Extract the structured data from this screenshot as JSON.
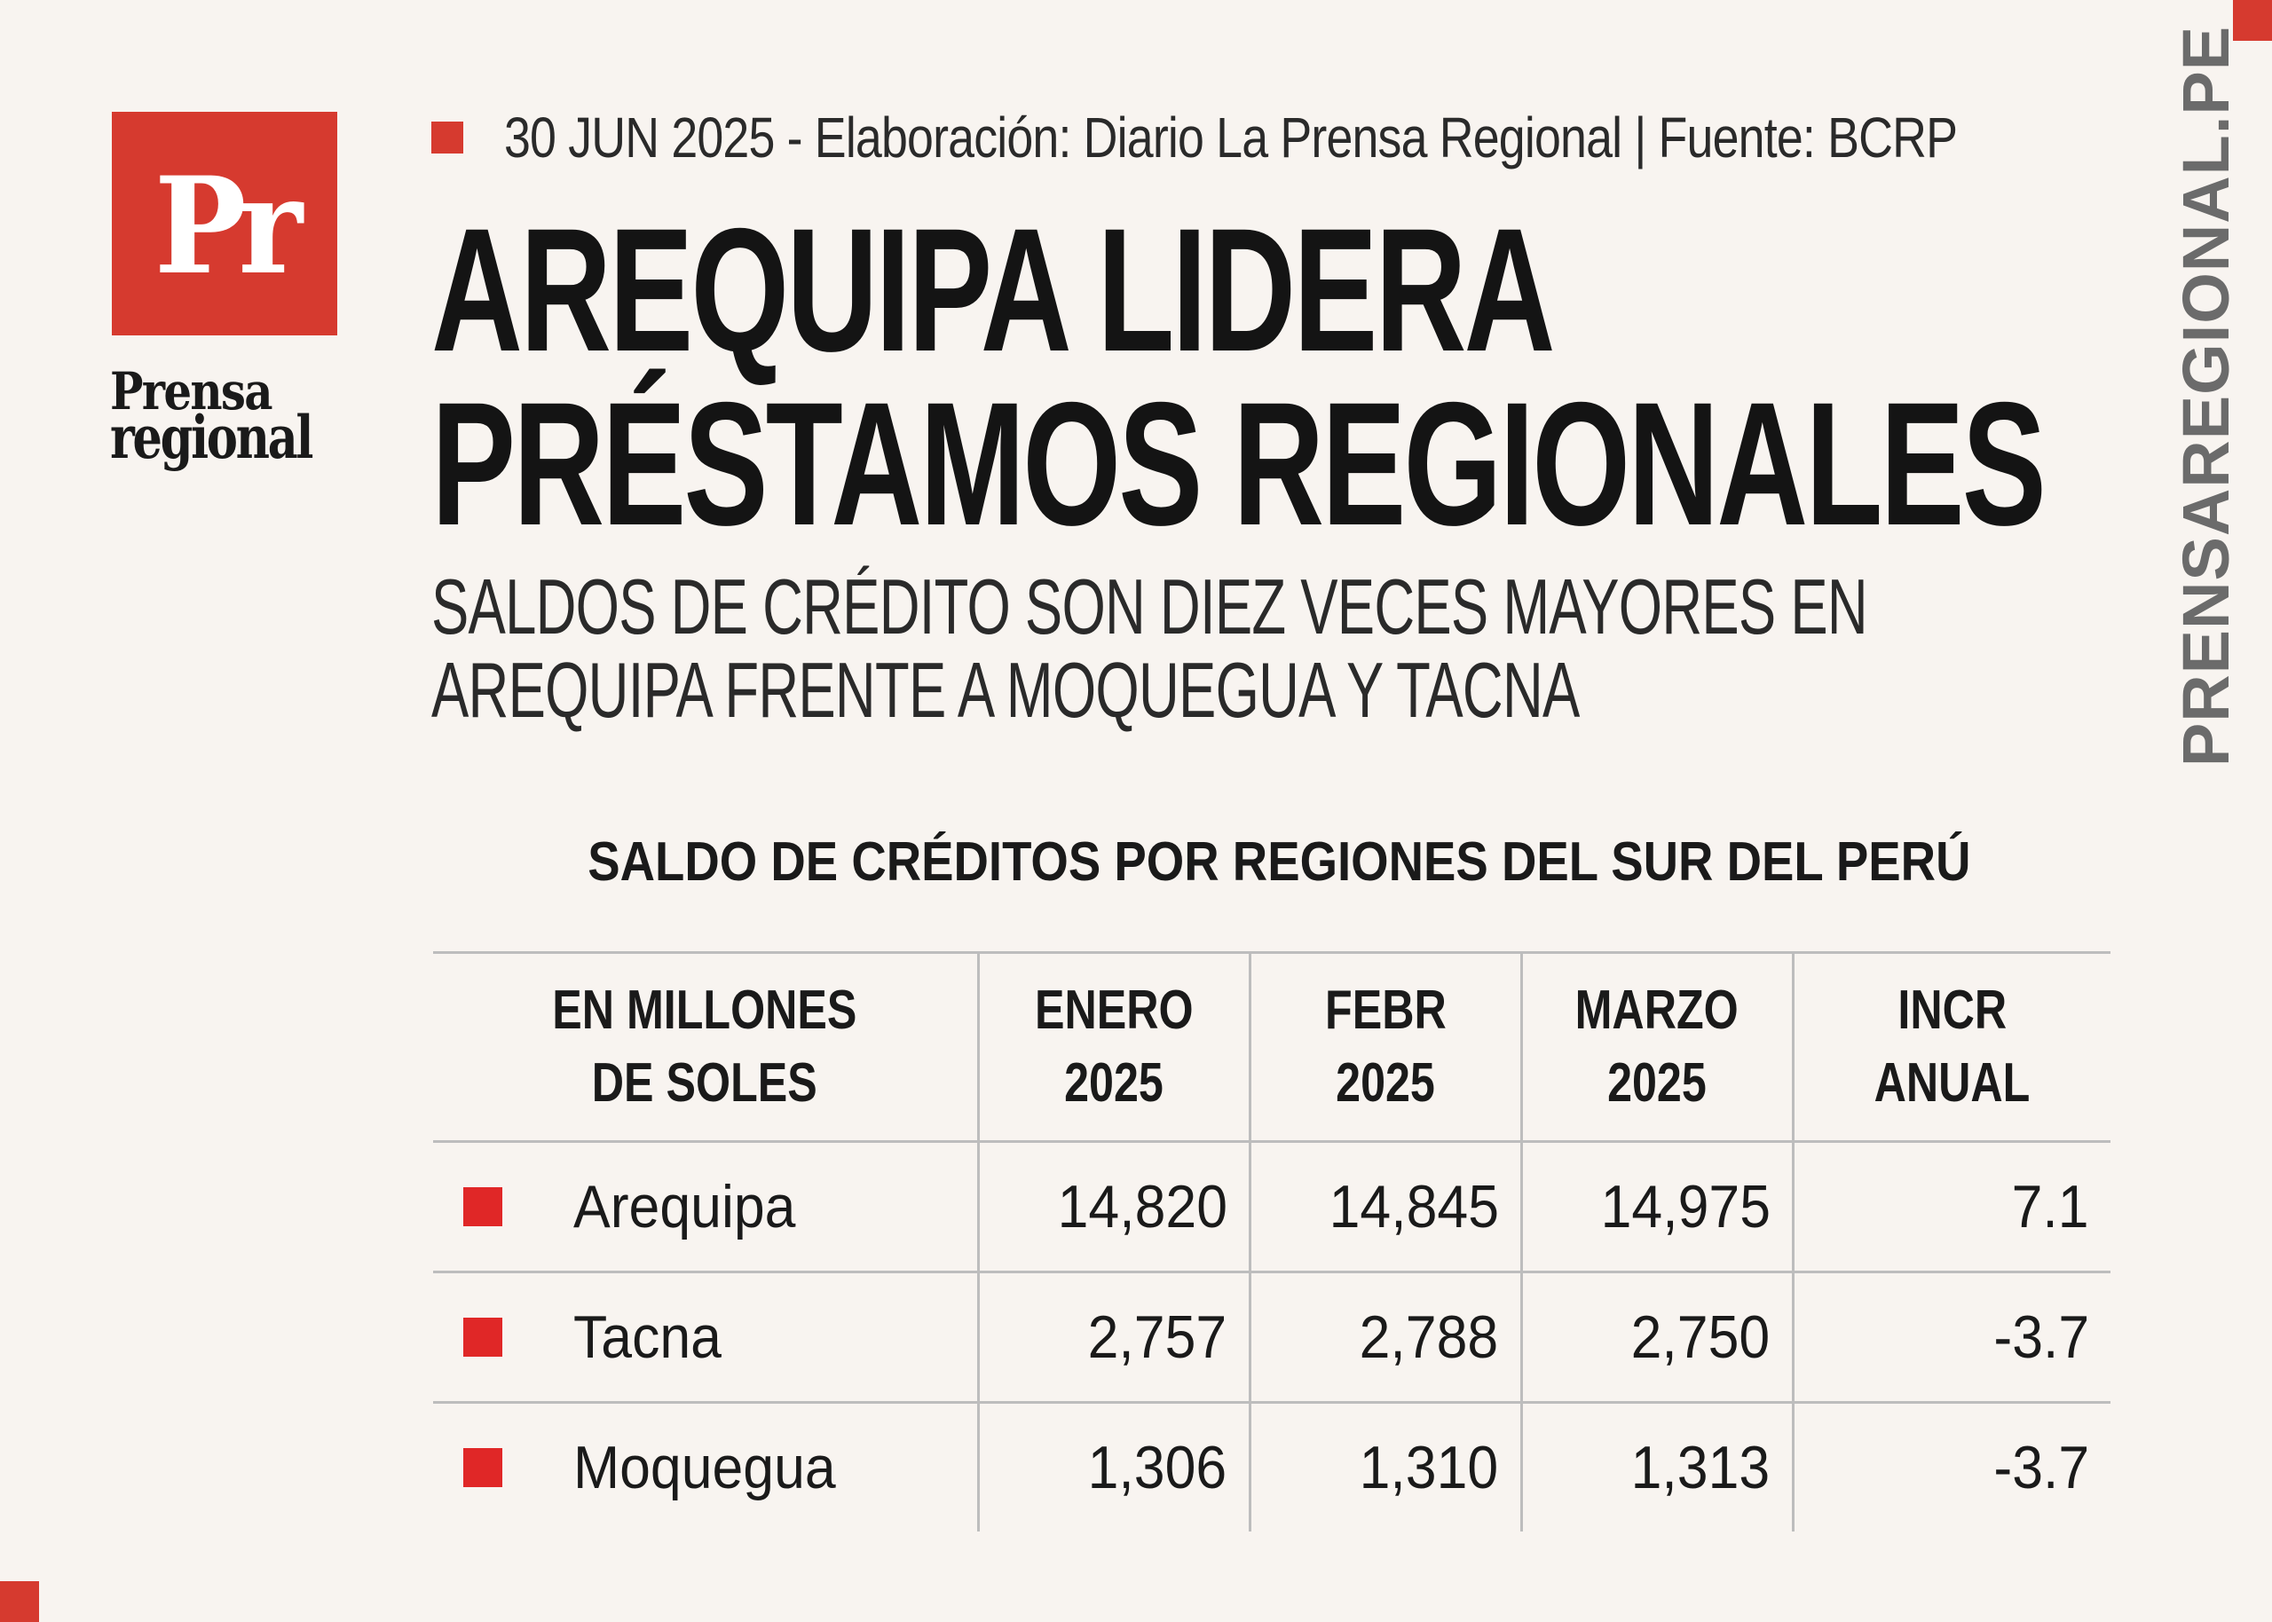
{
  "brand": {
    "logo_mark": "Pr",
    "logo_line1": "Prensa",
    "logo_line2": "regional",
    "side_text": "PRENSAREGIONAL.PE",
    "accent": "#d63a2f",
    "bullet_color": "#e02727"
  },
  "header": {
    "meta": "30 JUN 2025 -  Elaboración: Diario La Prensa Regional | Fuente: BCRP",
    "headline_line1": "AREQUIPA LIDERA",
    "headline_line2": "PRÉSTAMOS REGIONALES",
    "subtitle_line1": "SALDOS DE CRÉDITO SON DIEZ VECES MAYORES EN",
    "subtitle_line2": "AREQUIPA FRENTE A MOQUEGUA Y TACNA"
  },
  "table": {
    "title": "SALDO DE CRÉDITOS POR REGIONES DEL SUR DEL PERÚ",
    "columns": [
      {
        "line1": "EN MILLONES",
        "line2": "DE SOLES"
      },
      {
        "line1": "ENERO",
        "line2": "2025"
      },
      {
        "line1": "FEBR",
        "line2": "2025"
      },
      {
        "line1": "MARZO",
        "line2": "2025"
      },
      {
        "line1": "INCR",
        "line2": "ANUAL"
      }
    ],
    "rows": [
      {
        "region": "Arequipa",
        "enero": "14,820",
        "febr": "14,845",
        "marzo": "14,975",
        "incr": "7.1"
      },
      {
        "region": "Tacna",
        "enero": "2,757",
        "febr": "2,788",
        "marzo": "2,750",
        "incr": "-3.7"
      },
      {
        "region": "Moquegua",
        "enero": "1,306",
        "febr": "1,310",
        "marzo": "1,313",
        "incr": "-3.7"
      }
    ]
  }
}
